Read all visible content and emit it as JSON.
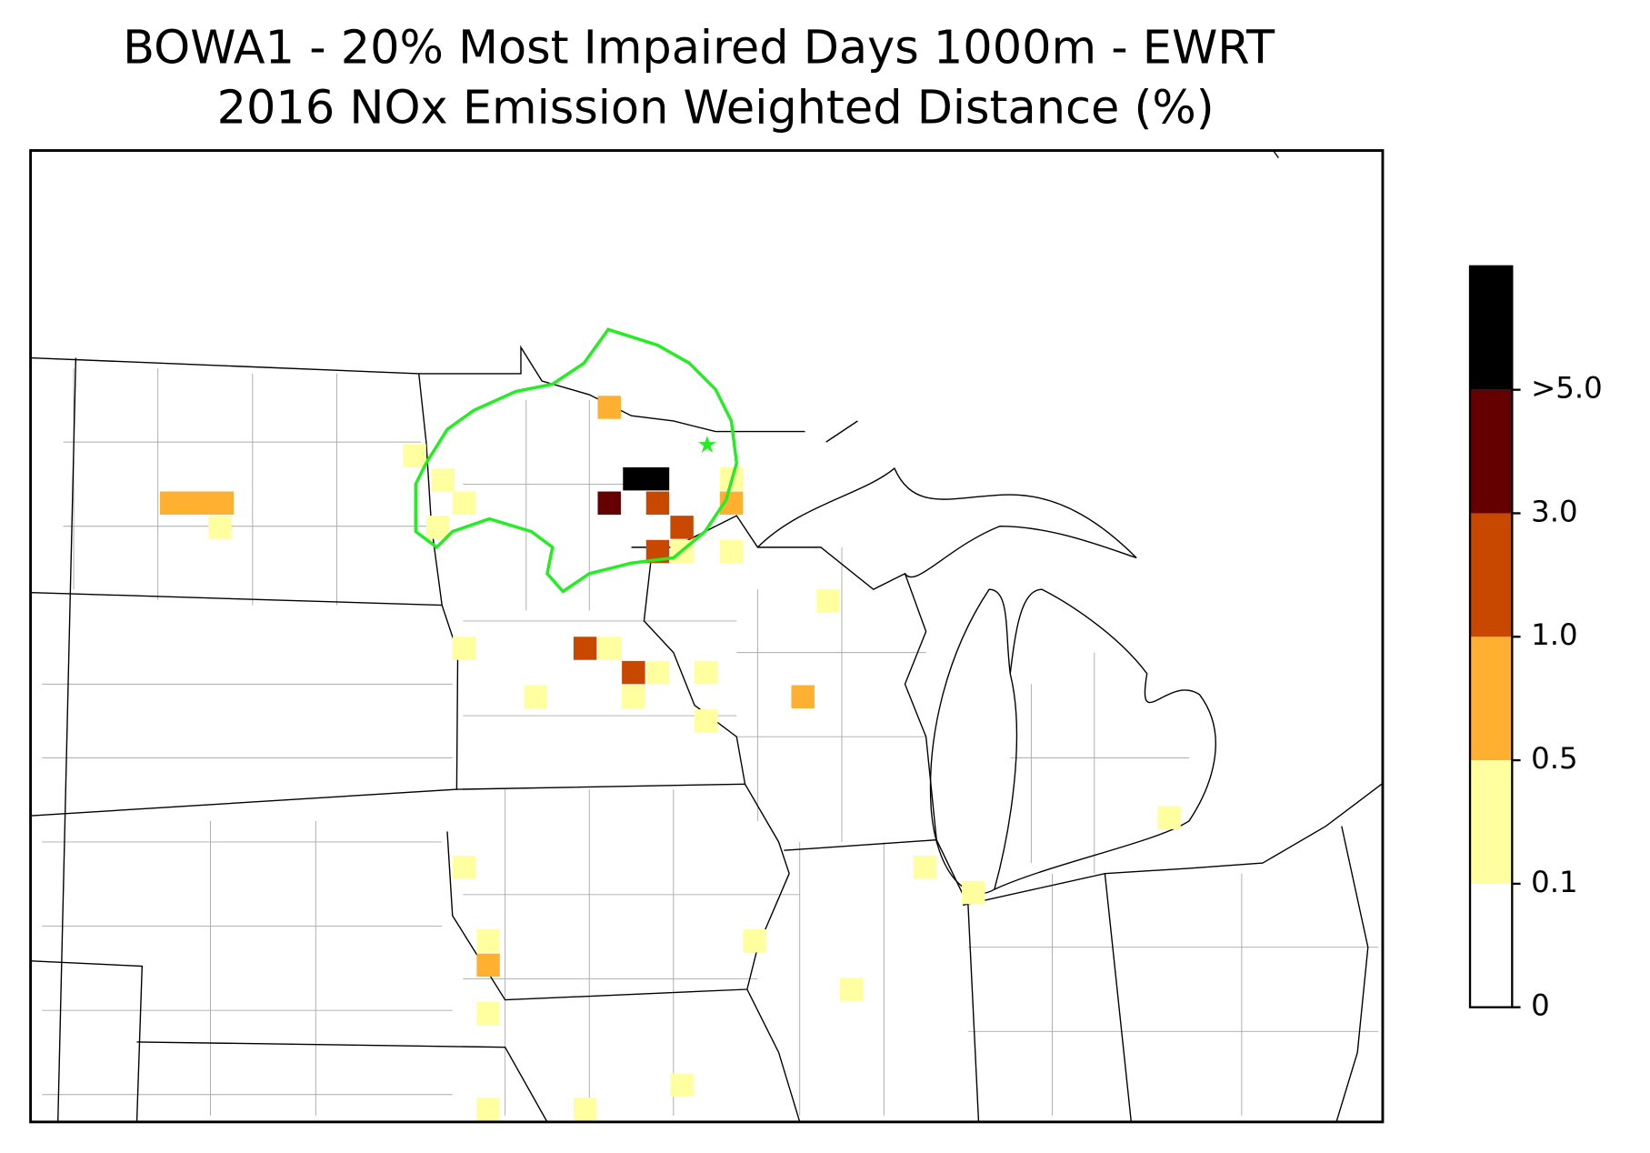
{
  "title": [
    "BOWA1 - 20% Most Impaired Days 1000m - EWRT",
    "2016 NOx Emission Weighted Distance (%)"
  ],
  "colorbar": {
    "ticks": [
      0,
      0.1,
      0.5,
      {
        "value": 1,
        "label": "1.0"
      },
      {
        "value": 3,
        "label": "3.0"
      },
      {
        "value": 5,
        "label": ">5.0"
      }
    ],
    "colors": [
      "#ffffff",
      "#ffffa0",
      "#ffb030",
      "#c84800",
      "#640000",
      "#000000"
    ]
  }
}
